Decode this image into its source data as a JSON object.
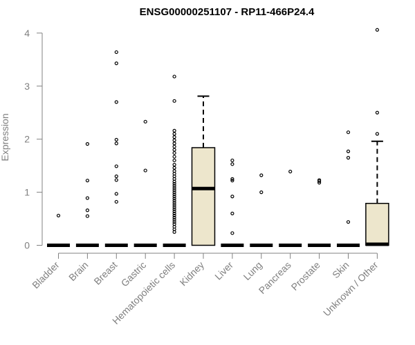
{
  "chart_data": {
    "type": "boxplot",
    "title": "ENSG00000251107 - RP11-466P24.4",
    "xlabel": "",
    "ylabel": "Expression",
    "ylim": [
      0,
      4.1
    ],
    "yticks": [
      0,
      1,
      2,
      3,
      4
    ],
    "grid": false,
    "legend": "none",
    "box_fill": "#ede6cc",
    "box_stroke": "#000000",
    "axis_color": "#808080",
    "categories": [
      "Bladder",
      "Brain",
      "Breast",
      "Gastric",
      "Hematopoietic cells",
      "Kidney",
      "Liver",
      "Lung",
      "Pancreas",
      "Prostate",
      "Skin",
      "Unknown / Other"
    ],
    "boxes": [
      {
        "category": "Bladder",
        "min": 0,
        "q1": 0,
        "median": 0,
        "q3": 0,
        "max": 0,
        "outliers": [
          0.56
        ]
      },
      {
        "category": "Brain",
        "min": 0,
        "q1": 0,
        "median": 0,
        "q3": 0,
        "max": 0,
        "outliers": [
          0.55,
          0.66,
          0.89,
          1.22,
          1.91
        ]
      },
      {
        "category": "Breast",
        "min": 0,
        "q1": 0,
        "median": 0,
        "q3": 0,
        "max": 0,
        "outliers": [
          0.82,
          0.97,
          1.23,
          1.3,
          1.49,
          1.92,
          1.99,
          2.7,
          3.43,
          3.64
        ]
      },
      {
        "category": "Gastric",
        "min": 0,
        "q1": 0,
        "median": 0,
        "q3": 0,
        "max": 0,
        "outliers": [
          1.41,
          2.33
        ]
      },
      {
        "category": "Hematopoietic cells",
        "min": 0,
        "q1": 0,
        "median": 0,
        "q3": 0,
        "max": 0,
        "outliers": [
          0.25,
          0.3,
          0.35,
          0.4,
          0.44,
          0.48,
          0.52,
          0.56,
          0.6,
          0.64,
          0.68,
          0.72,
          0.76,
          0.8,
          0.84,
          0.88,
          0.92,
          0.96,
          1.0,
          1.04,
          1.08,
          1.12,
          1.16,
          1.2,
          1.25,
          1.3,
          1.35,
          1.4,
          1.46,
          1.52,
          1.6,
          1.67,
          1.74,
          1.8,
          1.86,
          1.92,
          1.98,
          2.04,
          2.1,
          2.16,
          2.72,
          3.18
        ]
      },
      {
        "category": "Kidney",
        "min": 0,
        "q1": 0,
        "median": 1.07,
        "q3": 1.84,
        "max": 2.81,
        "outliers": []
      },
      {
        "category": "Liver",
        "min": 0,
        "q1": 0,
        "median": 0,
        "q3": 0,
        "max": 0,
        "outliers": [
          0.23,
          0.6,
          0.92,
          1.22,
          1.25,
          1.53,
          1.6
        ]
      },
      {
        "category": "Lung",
        "min": 0,
        "q1": 0,
        "median": 0,
        "q3": 0,
        "max": 0,
        "outliers": [
          1.0,
          1.32
        ]
      },
      {
        "category": "Pancreas",
        "min": 0,
        "q1": 0,
        "median": 0,
        "q3": 0,
        "max": 0,
        "outliers": [
          1.39
        ]
      },
      {
        "category": "Prostate",
        "min": 0,
        "q1": 0,
        "median": 0,
        "q3": 0,
        "max": 0,
        "outliers": [
          1.18,
          1.21,
          1.23
        ]
      },
      {
        "category": "Skin",
        "min": 0,
        "q1": 0,
        "median": 0,
        "q3": 0,
        "max": 0,
        "outliers": [
          0.44,
          1.65,
          1.77,
          2.13
        ]
      },
      {
        "category": "Unknown / Other",
        "min": 0,
        "q1": 0,
        "median": 0.02,
        "q3": 0.79,
        "max": 1.96,
        "outliers": [
          2.1,
          2.5,
          4.06
        ]
      }
    ]
  }
}
